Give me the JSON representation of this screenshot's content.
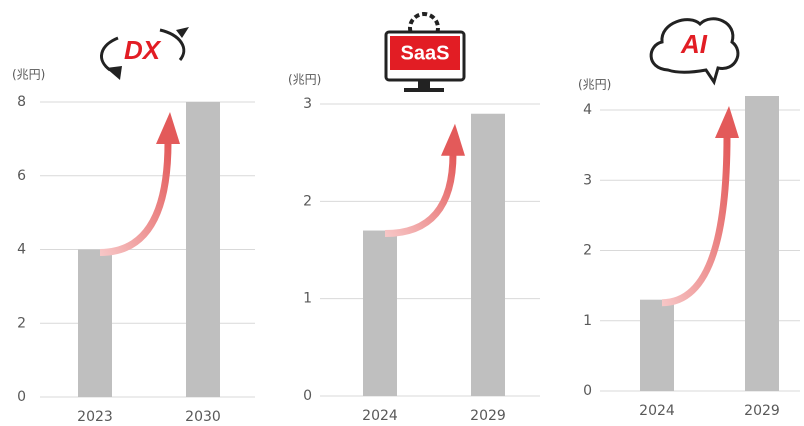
{
  "chart_data": [
    {
      "type": "bar",
      "title": "DX",
      "y_label": "(兆円)",
      "categories": [
        "2023",
        "2030"
      ],
      "values": [
        4.0,
        8.0
      ],
      "color": "#bfbfbf",
      "ylim": [
        0,
        8
      ],
      "yticks": [
        0,
        2,
        4,
        6,
        8
      ],
      "grid": true
    },
    {
      "type": "bar",
      "title": "SaaS",
      "y_label": "(兆円)",
      "categories": [
        "2024",
        "2029"
      ],
      "values": [
        1.7,
        2.9
      ],
      "color": "#bfbfbf",
      "ylim": [
        0,
        3
      ],
      "yticks": [
        0,
        1,
        2,
        3
      ],
      "grid": true
    },
    {
      "type": "bar",
      "title": "AI",
      "y_label": "(兆円)",
      "categories": [
        "2024",
        "2029"
      ],
      "values": [
        1.3,
        4.2
      ],
      "color": "#bfbfbf",
      "ylim": [
        0,
        4.2
      ],
      "yticks": [
        0,
        1,
        2,
        3,
        4
      ],
      "grid": true
    }
  ]
}
